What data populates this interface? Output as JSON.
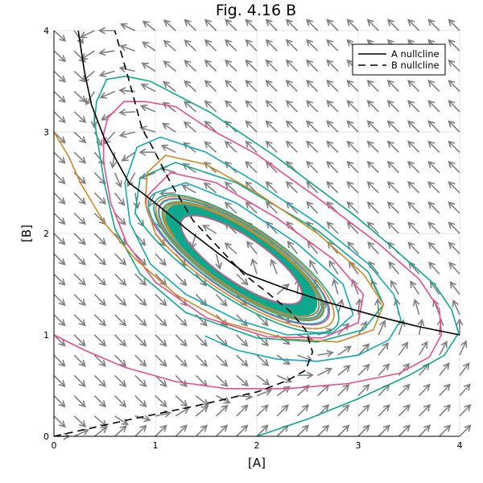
{
  "chart_data": {
    "type": "line",
    "title": "Fig. 4.16 B",
    "xlabel": "[A]",
    "ylabel": "[B]",
    "xlim": [
      0,
      4
    ],
    "ylim": [
      0,
      4
    ],
    "xticks": [
      "0",
      "1",
      "2",
      "3",
      "4"
    ],
    "yticks": [
      "0",
      "1",
      "2",
      "3",
      "4"
    ],
    "grid": true,
    "legend": "top-right",
    "series": [
      {
        "name": "A nullcline",
        "style": "solid",
        "color": "#000000",
        "points": [
          [
            0.24,
            4.0
          ],
          [
            0.3,
            3.6
          ],
          [
            0.37,
            3.27
          ],
          [
            0.5,
            2.93
          ],
          [
            0.74,
            2.5
          ],
          [
            1.0,
            2.3
          ],
          [
            1.3,
            2.05
          ],
          [
            1.6,
            1.82
          ],
          [
            1.9,
            1.6
          ],
          [
            2.3,
            1.45
          ],
          [
            2.7,
            1.32
          ],
          [
            3.2,
            1.18
          ],
          [
            3.6,
            1.08
          ],
          [
            4.0,
            1.0
          ]
        ]
      },
      {
        "name": "B nullcline",
        "style": "dashed",
        "color": "#000000",
        "points": [
          [
            0,
            0
          ],
          [
            0.79,
            0.175
          ],
          [
            1.4,
            0.3
          ],
          [
            2.01,
            0.44
          ],
          [
            2.3,
            0.55
          ],
          [
            2.48,
            0.65
          ],
          [
            2.55,
            0.83
          ],
          [
            2.48,
            1.05
          ],
          [
            2.33,
            1.23
          ],
          [
            2.1,
            1.42
          ],
          [
            1.87,
            1.6
          ],
          [
            1.37,
            2.13
          ],
          [
            1.15,
            2.5
          ],
          [
            0.96,
            2.87
          ],
          [
            0.87,
            3.03
          ],
          [
            0.74,
            3.51
          ],
          [
            0.6,
            4.0
          ]
        ]
      }
    ],
    "trajectories": [
      {
        "color": "#10a88c",
        "loops": 3,
        "points": [
          [
            2.0,
            0.0
          ],
          [
            2.5,
            0.17
          ],
          [
            3.0,
            0.37
          ],
          [
            3.5,
            0.6
          ],
          [
            3.85,
            0.8
          ],
          [
            3.99,
            1.02
          ],
          [
            3.92,
            1.25
          ],
          [
            3.75,
            1.5
          ],
          [
            3.33,
            1.87
          ],
          [
            2.96,
            2.18
          ],
          [
            2.17,
            2.77
          ],
          [
            1.53,
            3.2
          ],
          [
            0.95,
            3.5
          ],
          [
            0.71,
            3.55
          ],
          [
            0.52,
            3.52
          ],
          [
            0.42,
            3.3
          ],
          [
            0.4,
            3.11
          ],
          [
            0.45,
            2.79
          ],
          [
            0.5,
            2.48
          ],
          [
            0.6,
            2.05
          ],
          [
            0.85,
            1.6
          ],
          [
            1.3,
            1.22
          ],
          [
            2.0,
            0.97
          ],
          [
            2.6,
            0.93
          ],
          [
            3.05,
            1.05
          ],
          [
            3.25,
            1.3
          ],
          [
            3.1,
            1.62
          ],
          [
            2.6,
            2.03
          ],
          [
            1.8,
            2.5
          ],
          [
            1.2,
            2.7
          ],
          [
            0.85,
            2.55
          ],
          [
            0.8,
            2.2
          ]
        ]
      },
      {
        "color": "#ea4c8d",
        "loops": 3,
        "points": [
          [
            0,
            1.0
          ],
          [
            0.3,
            0.85
          ],
          [
            0.7,
            0.68
          ],
          [
            1.2,
            0.54
          ],
          [
            1.7,
            0.47
          ],
          [
            2.3,
            0.47
          ],
          [
            2.9,
            0.52
          ],
          [
            3.4,
            0.62
          ],
          [
            3.7,
            0.78
          ],
          [
            3.82,
            1.0
          ],
          [
            3.8,
            1.25
          ],
          [
            3.6,
            1.55
          ],
          [
            3.2,
            1.9
          ],
          [
            2.6,
            2.35
          ],
          [
            2.0,
            2.78
          ],
          [
            1.5,
            3.05
          ],
          [
            1.2,
            3.25
          ],
          [
            0.9,
            3.3
          ],
          [
            0.69,
            3.3
          ],
          [
            0.53,
            3.14
          ],
          [
            0.49,
            2.98
          ],
          [
            0.49,
            2.7
          ],
          [
            0.56,
            2.3
          ],
          [
            0.72,
            1.9
          ],
          [
            1.0,
            1.52
          ],
          [
            1.5,
            1.17
          ],
          [
            2.1,
            0.98
          ],
          [
            2.65,
            0.97
          ],
          [
            3.0,
            1.12
          ],
          [
            3.05,
            1.4
          ],
          [
            2.75,
            1.75
          ],
          [
            2.2,
            2.15
          ],
          [
            1.6,
            2.5
          ],
          [
            1.15,
            2.6
          ],
          [
            0.95,
            2.4
          ]
        ]
      },
      {
        "color": "#12a9b5",
        "loops": 3,
        "points": [
          [
            1.49,
            0.99
          ],
          [
            1.8,
            0.85
          ],
          [
            2.2,
            0.76
          ],
          [
            2.6,
            0.74
          ],
          [
            3.0,
            0.8
          ],
          [
            3.3,
            0.95
          ],
          [
            3.42,
            1.15
          ],
          [
            3.35,
            1.4
          ],
          [
            3.1,
            1.7
          ],
          [
            2.6,
            2.1
          ],
          [
            2.0,
            2.5
          ],
          [
            1.5,
            2.8
          ],
          [
            1.05,
            2.95
          ],
          [
            0.82,
            2.85
          ],
          [
            0.7,
            2.5
          ],
          [
            0.75,
            2.1
          ],
          [
            0.95,
            1.7
          ],
          [
            1.3,
            1.4
          ],
          [
            1.8,
            1.15
          ],
          [
            2.3,
            1.0
          ],
          [
            2.75,
            1.02
          ],
          [
            2.95,
            1.2
          ],
          [
            2.85,
            1.5
          ],
          [
            2.4,
            1.9
          ],
          [
            1.8,
            2.3
          ],
          [
            1.3,
            2.5
          ],
          [
            1.0,
            2.4
          ]
        ]
      },
      {
        "color": "#c98a2b",
        "loops": 3,
        "points": [
          [
            0,
            3.0
          ],
          [
            0.15,
            2.75
          ],
          [
            0.26,
            2.5
          ],
          [
            0.5,
            2.1
          ],
          [
            0.8,
            1.75
          ],
          [
            1.2,
            1.4
          ],
          [
            1.7,
            1.12
          ],
          [
            2.3,
            0.96
          ],
          [
            2.8,
            0.93
          ],
          [
            3.15,
            1.05
          ],
          [
            3.25,
            1.3
          ],
          [
            3.05,
            1.6
          ],
          [
            2.6,
            2.0
          ],
          [
            2.0,
            2.4
          ],
          [
            1.5,
            2.68
          ],
          [
            1.1,
            2.77
          ],
          [
            0.92,
            2.6
          ],
          [
            0.9,
            2.3
          ],
          [
            1.0,
            2.0
          ]
        ]
      }
    ],
    "limit_cycle": {
      "center": [
        1.85,
        1.74
      ],
      "semi_major": 0.88,
      "semi_minor": 0.28,
      "angle_deg": -34,
      "band_color": "#10a88c",
      "inner_color": "#ea4c8d",
      "inner_scale": 0.8
    },
    "vector_field": {
      "spacing": 0.2,
      "color": "#808080"
    }
  }
}
